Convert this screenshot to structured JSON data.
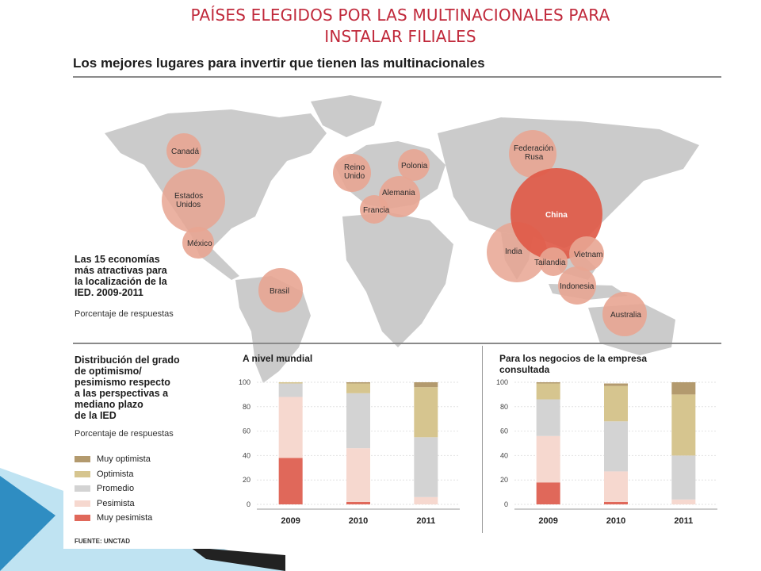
{
  "slide": {
    "title_line1": "PAÍSES ELEGIDOS POR LAS MULTINACIONALES PARA",
    "title_line2": "INSTALAR FILIALES"
  },
  "infographic": {
    "header": "Los mejores lugares para invertir que tienen las multinacionales",
    "map_title": "Las 15 economías\nmás atractivas para\nla localización de la\nIED. 2009-2011",
    "map_subtitle": "Porcentaje de respuestas",
    "dist_title": "Distribución del grado\nde optimismo/\npesimismo respecto\na las perspectivas a\nmediano plazo\nde la IED",
    "dist_subtitle": "Porcentaje de respuestas",
    "source": "FUENTE: UNCTAD",
    "countries": [
      "Canadá",
      "Estados Unidos",
      "México",
      "Brasil",
      "Reino Unido",
      "Polonia",
      "Alemania",
      "Francia",
      "Federación Rusa",
      "China",
      "India",
      "Tailandia",
      "Vietnam",
      "Indonesia",
      "Australia"
    ]
  },
  "colors": {
    "title_red": "#c0283a",
    "muy_optimista": "#b39a6e",
    "optimista": "#d6c58f",
    "promedio": "#d3d3d3",
    "pesimista": "#f6d8cf",
    "muy_pesimista": "#e0685a",
    "map_land": "#cbcbcb",
    "bubble_light": "#e8a592",
    "bubble_china": "#e05a48"
  },
  "chart_data": [
    {
      "type": "bar",
      "stacked": true,
      "title": "A nivel mundial",
      "categories": [
        "2009",
        "2010",
        "2011"
      ],
      "ylim": [
        0,
        100
      ],
      "yticks": [
        "0",
        "20",
        "40",
        "60",
        "80",
        "100"
      ],
      "legend_placement": "left",
      "series": [
        {
          "name": "Muy pesimista",
          "values": [
            38,
            2,
            0
          ]
        },
        {
          "name": "Pesimista",
          "values": [
            50,
            44,
            6
          ]
        },
        {
          "name": "Promedio",
          "values": [
            11,
            45,
            49
          ]
        },
        {
          "name": "Optimista",
          "values": [
            1,
            8,
            41
          ]
        },
        {
          "name": "Muy optimista",
          "values": [
            0,
            1,
            4
          ]
        }
      ]
    },
    {
      "type": "bar",
      "stacked": true,
      "title": "Para los negocios de la empresa\nconsultada",
      "categories": [
        "2009",
        "2010",
        "2011"
      ],
      "ylim": [
        0,
        100
      ],
      "yticks": [
        "0",
        "20",
        "40",
        "60",
        "80",
        "100"
      ],
      "legend_placement": "left",
      "series": [
        {
          "name": "Muy pesimista",
          "values": [
            18,
            2,
            0
          ]
        },
        {
          "name": "Pesimista",
          "values": [
            38,
            25,
            4
          ]
        },
        {
          "name": "Promedio",
          "values": [
            30,
            41,
            36
          ]
        },
        {
          "name": "Optimista",
          "values": [
            13,
            29,
            50
          ]
        },
        {
          "name": "Muy optimista",
          "values": [
            1,
            2,
            10
          ]
        }
      ]
    }
  ]
}
